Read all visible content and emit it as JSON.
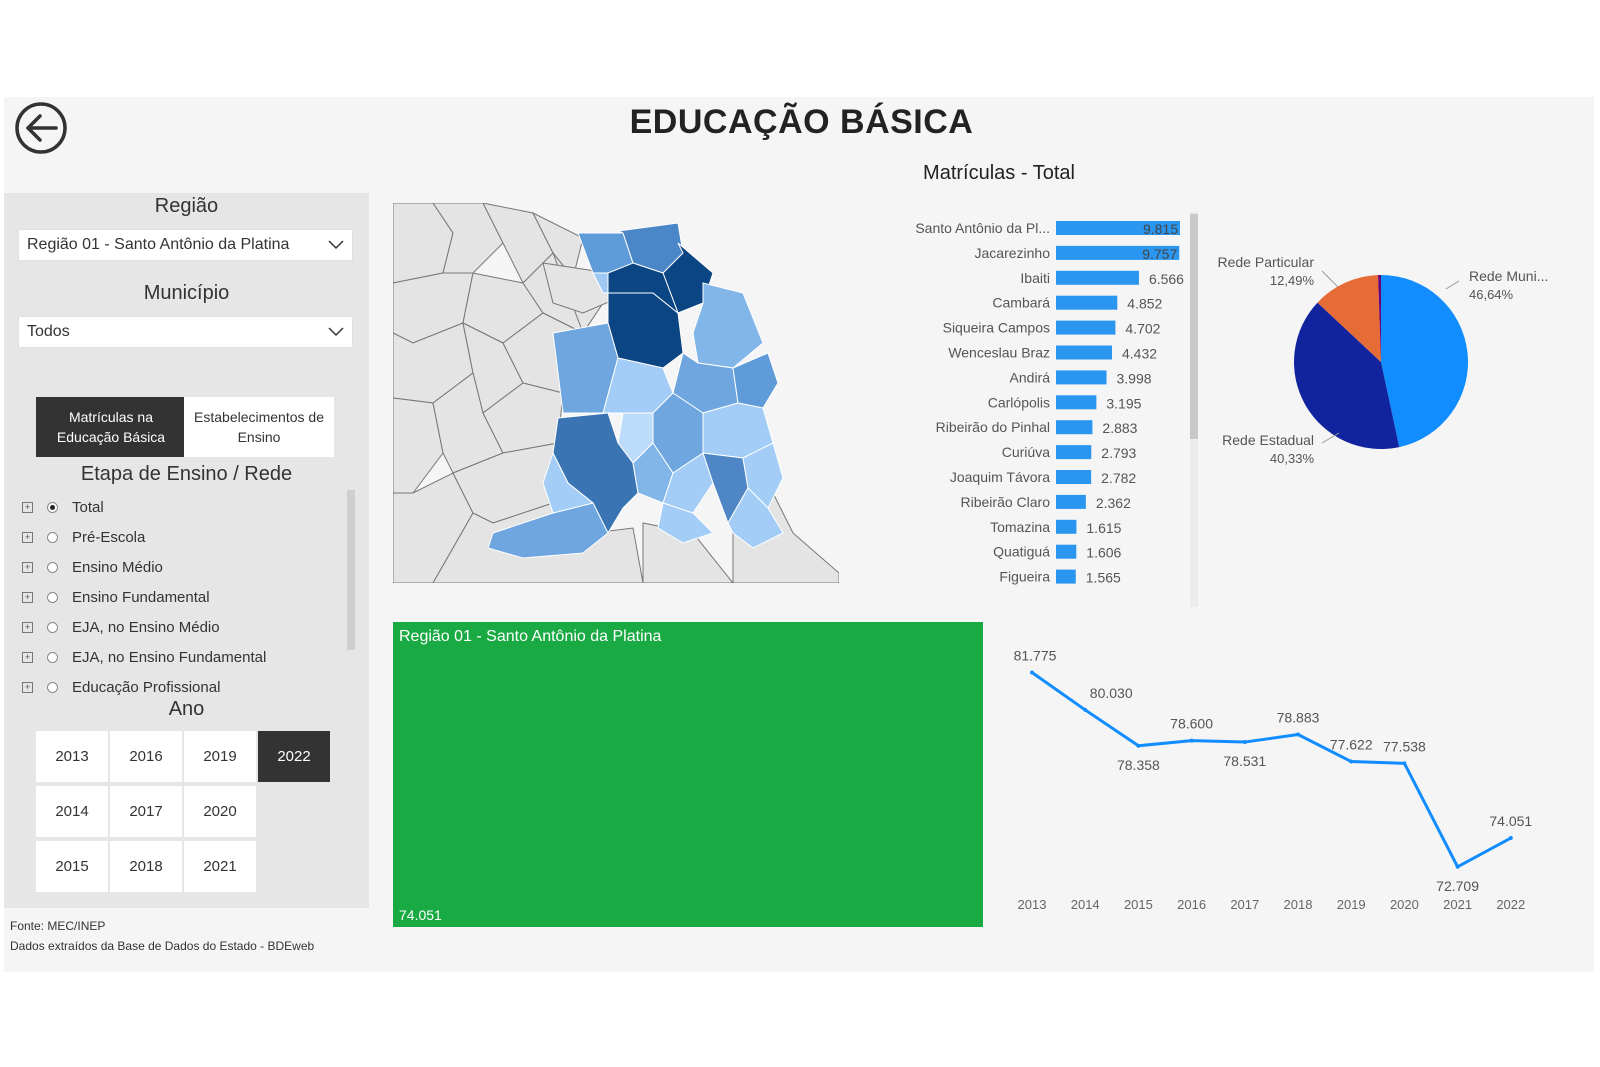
{
  "header": {
    "title": "EDUCAÇÃO BÁSICA",
    "subtitle": "Matrículas - Total"
  },
  "filters": {
    "regiao_label": "Região",
    "regiao_value": "Região 01 - Santo Antônio da Platina",
    "municipio_label": "Município",
    "municipio_value": "Todos"
  },
  "toggles": {
    "matriculas": "Matrículas na Educação Básica",
    "estabelecimentos": "Estabelecimentos de Ensino"
  },
  "etapa": {
    "label": "Etapa de Ensino / Rede",
    "items": [
      {
        "label": "Total",
        "selected": true
      },
      {
        "label": "Pré-Escola",
        "selected": false
      },
      {
        "label": "Ensino Médio",
        "selected": false
      },
      {
        "label": "Ensino Fundamental",
        "selected": false
      },
      {
        "label": "EJA, no Ensino Médio",
        "selected": false
      },
      {
        "label": "EJA, no Ensino Fundamental",
        "selected": false
      },
      {
        "label": "Educação Profissional",
        "selected": false
      }
    ]
  },
  "ano": {
    "label": "Ano",
    "years": [
      "2013",
      "2016",
      "2019",
      "2022",
      "2014",
      "2017",
      "2020",
      "2015",
      "2018",
      "2021"
    ],
    "selected": "2022"
  },
  "footer": {
    "source": "Fonte: MEC/INEP",
    "extract": "Dados extraídos da Base de Dados do Estado - BDEweb"
  },
  "treemap": {
    "label": "Região 01 - Santo Antônio da Platina",
    "value": "74.051",
    "color": "#1aaa44"
  },
  "colors": {
    "bar": "#2b96f0",
    "pie_municipal": "#118dff",
    "pie_estadual": "#12239e",
    "pie_particular": "#e66c37",
    "line": "#118dff"
  },
  "chart_data": [
    {
      "type": "bar",
      "orientation": "horizontal",
      "categories": [
        "Santo Antônio da Pl...",
        "Jacarezinho",
        "Ibaiti",
        "Cambará",
        "Siqueira Campos",
        "Wenceslau Braz",
        "Andirá",
        "Carlópolis",
        "Ribeirão do Pinhal",
        "Curiúva",
        "Joaquim Távora",
        "Ribeirão Claro",
        "Tomazina",
        "Quatiguá",
        "Figueira"
      ],
      "values": [
        9815,
        9757,
        6566,
        4852,
        4702,
        4432,
        3998,
        3195,
        2883,
        2793,
        2782,
        2362,
        1615,
        1606,
        1565
      ],
      "value_labels": [
        "9.815",
        "9.757",
        "6.566",
        "4.852",
        "4.702",
        "4.432",
        "3.998",
        "3.195",
        "2.883",
        "2.793",
        "2.782",
        "2.362",
        "1.615",
        "1.606",
        "1.565"
      ],
      "xlim": [
        0,
        9815
      ]
    },
    {
      "type": "pie",
      "slices": [
        {
          "label": "Rede Muni...",
          "pct_label": "46,64%",
          "value": 46.64,
          "color": "#118dff"
        },
        {
          "label": "Rede Estadual",
          "pct_label": "40,33%",
          "value": 40.33,
          "color": "#12239e"
        },
        {
          "label": "Rede Particular",
          "pct_label": "12,49%",
          "value": 12.49,
          "color": "#e66c37"
        },
        {
          "label": "",
          "pct_label": "",
          "value": 0.54,
          "color": "#6b007b"
        }
      ]
    },
    {
      "type": "line",
      "x": [
        "2013",
        "2014",
        "2015",
        "2016",
        "2017",
        "2018",
        "2019",
        "2020",
        "2021",
        "2022"
      ],
      "values": [
        81775,
        80030,
        78358,
        78600,
        78531,
        78883,
        77622,
        77538,
        72709,
        74051
      ],
      "value_labels": [
        "81.775",
        "80.030",
        "78.358",
        "78.600",
        "78.531",
        "78.883",
        "77.622",
        "77.538",
        "72.709",
        "74.051"
      ]
    }
  ]
}
